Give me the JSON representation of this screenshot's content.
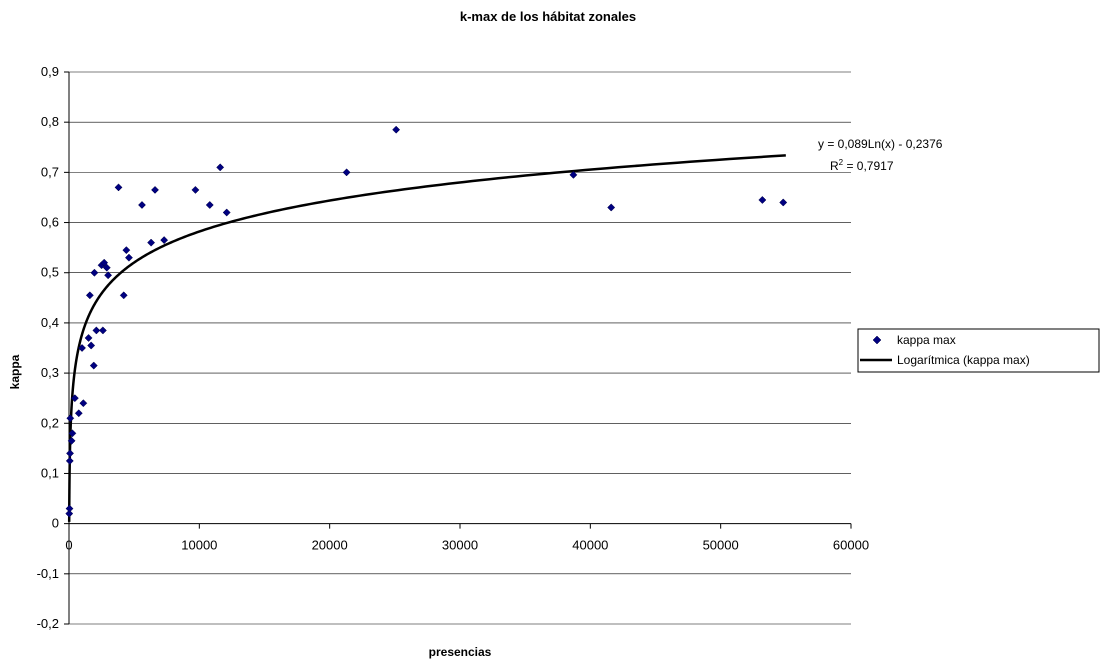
{
  "chart_data": {
    "type": "scatter",
    "title": "k-max de los hábitat zonales",
    "xlabel": "presencias",
    "ylabel": "kappa",
    "xlim": [
      0,
      60000
    ],
    "ylim": [
      -0.2,
      0.9
    ],
    "xticks": [
      "0",
      "10000",
      "20000",
      "30000",
      "40000",
      "50000",
      "60000"
    ],
    "xtick_values": [
      0,
      10000,
      20000,
      30000,
      40000,
      50000,
      60000
    ],
    "yticks": [
      "-0,2",
      "-0,1",
      "0",
      "0,1",
      "0,2",
      "0,3",
      "0,4",
      "0,5",
      "0,6",
      "0,7",
      "0,8",
      "0,9"
    ],
    "ytick_values": [
      -0.2,
      -0.1,
      0,
      0.1,
      0.2,
      0.3,
      0.4,
      0.5,
      0.6,
      0.7,
      0.8,
      0.9
    ],
    "grid": "horizontal",
    "legend_position": "right",
    "series": [
      {
        "name": "kappa max",
        "marker": "diamond",
        "color": "#000080",
        "points": [
          [
            20,
            0.02
          ],
          [
            40,
            0.03
          ],
          [
            60,
            0.125
          ],
          [
            80,
            0.14
          ],
          [
            100,
            0.21
          ],
          [
            200,
            0.165
          ],
          [
            260,
            0.18
          ],
          [
            450,
            0.25
          ],
          [
            750,
            0.22
          ],
          [
            1000,
            0.35
          ],
          [
            1100,
            0.24
          ],
          [
            1500,
            0.37
          ],
          [
            1600,
            0.455
          ],
          [
            1700,
            0.355
          ],
          [
            1900,
            0.315
          ],
          [
            1950,
            0.5
          ],
          [
            2100,
            0.385
          ],
          [
            2500,
            0.515
          ],
          [
            2600,
            0.385
          ],
          [
            2700,
            0.52
          ],
          [
            2900,
            0.51
          ],
          [
            3000,
            0.495
          ],
          [
            3800,
            0.67
          ],
          [
            4200,
            0.455
          ],
          [
            4400,
            0.545
          ],
          [
            4600,
            0.53
          ],
          [
            5600,
            0.635
          ],
          [
            6300,
            0.56
          ],
          [
            6600,
            0.665
          ],
          [
            7300,
            0.565
          ],
          [
            9700,
            0.665
          ],
          [
            10800,
            0.635
          ],
          [
            11600,
            0.71
          ],
          [
            12100,
            0.62
          ],
          [
            21300,
            0.7
          ],
          [
            25100,
            0.785
          ],
          [
            38700,
            0.695
          ],
          [
            41600,
            0.63
          ],
          [
            53200,
            0.645
          ],
          [
            54800,
            0.64
          ]
        ]
      }
    ],
    "trendline": {
      "name": "Logarítmica (kappa max)",
      "type": "logarithmic",
      "a": 0.089,
      "b": -0.2376,
      "x_range": [
        15,
        55000
      ],
      "color": "#000000",
      "equation": "y = 0,089Ln(x) - 0,2376",
      "r2_prefix": "R",
      "r2_sup": "2",
      "r2_value": " = 0,7917"
    }
  }
}
